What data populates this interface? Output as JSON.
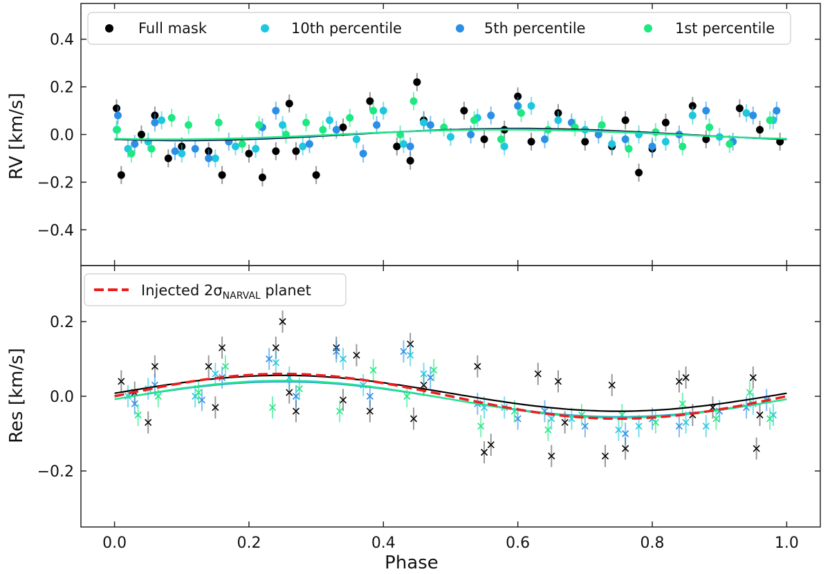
{
  "chart_data": [
    {
      "panel": "top",
      "type": "scatter",
      "xlabel": "Phase",
      "ylabel": "RV [km/s]",
      "xlim": [
        -0.05,
        1.05
      ],
      "ylim": [
        -0.55,
        0.55
      ],
      "xticks": [
        0.0,
        0.2,
        0.4,
        0.6,
        0.8,
        1.0
      ],
      "xtick_labels": [
        "0.0",
        "0.2",
        "0.4",
        "0.6",
        "0.8",
        "1.0"
      ],
      "yticks": [
        -0.4,
        -0.2,
        0.0,
        0.2,
        0.4
      ],
      "ytick_labels": [
        "−0.4",
        "−0.2",
        "0.0",
        "0.2",
        "0.4"
      ],
      "legend_position": "top",
      "series": [
        {
          "name": "Full mask",
          "color": "#000000",
          "marker": "circle",
          "x": [
            0.003,
            0.01,
            0.04,
            0.06,
            0.08,
            0.1,
            0.14,
            0.16,
            0.2,
            0.22,
            0.24,
            0.26,
            0.27,
            0.3,
            0.34,
            0.38,
            0.42,
            0.44,
            0.45,
            0.46,
            0.52,
            0.55,
            0.58,
            0.6,
            0.62,
            0.66,
            0.7,
            0.74,
            0.76,
            0.78,
            0.8,
            0.82,
            0.86,
            0.88,
            0.93,
            0.96,
            0.99
          ],
          "y": [
            0.11,
            -0.17,
            0.0,
            0.08,
            -0.1,
            -0.05,
            -0.07,
            -0.17,
            -0.08,
            -0.18,
            -0.07,
            0.13,
            -0.07,
            -0.17,
            0.03,
            0.14,
            -0.05,
            -0.11,
            0.22,
            0.06,
            0.1,
            -0.02,
            0.02,
            0.16,
            -0.03,
            0.09,
            -0.03,
            -0.05,
            0.06,
            -0.16,
            -0.06,
            0.05,
            0.12,
            -0.02,
            0.11,
            0.02,
            -0.03
          ]
        },
        {
          "name": "10th percentile",
          "color": "#1ec6e0",
          "marker": "circle",
          "x": [
            0.003,
            0.02,
            0.05,
            0.07,
            0.1,
            0.15,
            0.18,
            0.21,
            0.25,
            0.28,
            0.32,
            0.36,
            0.4,
            0.43,
            0.46,
            0.5,
            0.54,
            0.58,
            0.62,
            0.66,
            0.7,
            0.74,
            0.78,
            0.82,
            0.86,
            0.9,
            0.94,
            0.98
          ],
          "y": [
            0.02,
            -0.06,
            -0.03,
            0.06,
            -0.08,
            -0.1,
            -0.05,
            -0.06,
            0.04,
            -0.05,
            0.06,
            -0.02,
            0.1,
            -0.04,
            0.05,
            -0.01,
            0.07,
            -0.05,
            0.12,
            0.06,
            0.02,
            -0.04,
            0.0,
            -0.03,
            0.08,
            -0.01,
            0.09,
            0.06
          ]
        },
        {
          "name": "5th percentile",
          "color": "#2b8fe6",
          "marker": "circle",
          "x": [
            0.005,
            0.03,
            0.06,
            0.09,
            0.12,
            0.14,
            0.17,
            0.22,
            0.24,
            0.29,
            0.33,
            0.37,
            0.39,
            0.44,
            0.47,
            0.53,
            0.56,
            0.6,
            0.64,
            0.68,
            0.72,
            0.76,
            0.8,
            0.84,
            0.88,
            0.92,
            0.95,
            0.985
          ],
          "y": [
            0.08,
            -0.04,
            0.05,
            -0.07,
            -0.06,
            -0.1,
            -0.03,
            0.03,
            0.1,
            -0.04,
            0.02,
            -0.08,
            0.04,
            -0.05,
            0.04,
            0.0,
            0.08,
            0.12,
            -0.02,
            0.05,
            0.0,
            -0.02,
            -0.05,
            0.0,
            0.1,
            -0.03,
            0.08,
            0.1
          ]
        },
        {
          "name": "1st percentile",
          "color": "#1ee882",
          "marker": "circle",
          "x": [
            0.004,
            0.025,
            0.055,
            0.085,
            0.11,
            0.155,
            0.19,
            0.215,
            0.255,
            0.285,
            0.31,
            0.35,
            0.385,
            0.425,
            0.445,
            0.49,
            0.535,
            0.575,
            0.605,
            0.645,
            0.685,
            0.725,
            0.765,
            0.805,
            0.845,
            0.885,
            0.915,
            0.975
          ],
          "y": [
            0.02,
            -0.08,
            -0.06,
            0.07,
            0.04,
            0.05,
            -0.04,
            0.04,
            0.0,
            0.05,
            0.02,
            0.07,
            0.1,
            0.0,
            0.14,
            0.03,
            0.06,
            -0.02,
            0.09,
            0.02,
            0.03,
            0.04,
            -0.06,
            0.01,
            -0.05,
            0.03,
            -0.04,
            0.06
          ]
        }
      ],
      "fits": [
        {
          "name": "Full mask fit",
          "color": "#000000",
          "amplitude": 0.025,
          "offset": 0.0,
          "phase_peak": 0.6
        },
        {
          "name": "10th percentile fit",
          "color": "#1ec6e0",
          "amplitude": 0.021,
          "offset": 0.0,
          "phase_peak": 0.58
        },
        {
          "name": "5th percentile fit",
          "color": "#2b8fe6",
          "amplitude": 0.022,
          "offset": 0.0,
          "phase_peak": 0.59
        },
        {
          "name": "1st percentile fit",
          "color": "#1ee882",
          "amplitude": 0.02,
          "offset": 0.0,
          "phase_peak": 0.58
        }
      ]
    },
    {
      "panel": "bottom",
      "type": "scatter",
      "xlabel": "Phase",
      "ylabel": "Res [km/s]",
      "xlim": [
        -0.05,
        1.05
      ],
      "ylim": [
        -0.35,
        0.35
      ],
      "xticks": [
        0.0,
        0.2,
        0.4,
        0.6,
        0.8,
        1.0
      ],
      "xtick_labels": [
        "0.0",
        "0.2",
        "0.4",
        "0.6",
        "0.8",
        "1.0"
      ],
      "yticks": [
        -0.2,
        0.0,
        0.2
      ],
      "ytick_labels": [
        "−0.2",
        "0.0",
        "0.2"
      ],
      "legend_position": "top-left",
      "legend_label": "Injected 2σ",
      "legend_label_sub": "NARVAL",
      "legend_label_suffix": " planet",
      "injected_planet": {
        "color": "#ee1c1c",
        "amplitude": 0.06,
        "period_phase": 1.0
      },
      "series": [
        {
          "name": "Full mask residuals",
          "color": "#000000",
          "marker": "x",
          "x": [
            0.01,
            0.03,
            0.05,
            0.06,
            0.14,
            0.15,
            0.16,
            0.24,
            0.25,
            0.26,
            0.27,
            0.33,
            0.34,
            0.36,
            0.38,
            0.44,
            0.445,
            0.46,
            0.54,
            0.55,
            0.56,
            0.63,
            0.65,
            0.66,
            0.67,
            0.73,
            0.74,
            0.76,
            0.84,
            0.85,
            0.86,
            0.89,
            0.95,
            0.955,
            0.96
          ],
          "y": [
            0.04,
            0.01,
            -0.07,
            0.08,
            0.08,
            -0.03,
            0.13,
            0.13,
            0.2,
            0.01,
            -0.04,
            0.13,
            -0.01,
            0.11,
            -0.04,
            0.14,
            -0.06,
            0.03,
            0.08,
            -0.15,
            -0.13,
            0.06,
            -0.16,
            0.04,
            -0.07,
            -0.16,
            0.03,
            -0.14,
            0.04,
            0.05,
            -0.05,
            -0.03,
            0.05,
            -0.14,
            -0.05
          ]
        },
        {
          "name": "10th percentile residuals",
          "color": "#1ec6e0",
          "marker": "x",
          "x": [
            0.02,
            0.05,
            0.12,
            0.15,
            0.24,
            0.26,
            0.34,
            0.37,
            0.44,
            0.46,
            0.55,
            0.58,
            0.65,
            0.68,
            0.75,
            0.78,
            0.85,
            0.88,
            0.95,
            0.98
          ],
          "y": [
            0.0,
            0.02,
            0.0,
            0.06,
            0.09,
            0.05,
            0.1,
            0.03,
            0.11,
            0.06,
            -0.03,
            -0.03,
            -0.06,
            -0.06,
            -0.09,
            -0.08,
            -0.07,
            -0.08,
            -0.02,
            -0.05
          ]
        },
        {
          "name": "5th percentile residuals",
          "color": "#2b8fe6",
          "marker": "x",
          "x": [
            0.03,
            0.06,
            0.13,
            0.16,
            0.23,
            0.27,
            0.33,
            0.38,
            0.43,
            0.47,
            0.54,
            0.6,
            0.64,
            0.7,
            0.76,
            0.8,
            0.84,
            0.9,
            0.94,
            0.97
          ],
          "y": [
            -0.02,
            0.03,
            -0.01,
            0.05,
            0.1,
            0.0,
            0.12,
            0.0,
            0.12,
            0.05,
            -0.02,
            -0.06,
            -0.04,
            -0.08,
            -0.1,
            -0.06,
            -0.08,
            -0.04,
            -0.03,
            -0.01
          ]
        },
        {
          "name": "1st percentile residuals",
          "color": "#1ee882",
          "marker": "x",
          "x": [
            0.035,
            0.065,
            0.125,
            0.165,
            0.235,
            0.275,
            0.335,
            0.385,
            0.435,
            0.475,
            0.545,
            0.595,
            0.645,
            0.695,
            0.755,
            0.805,
            0.845,
            0.895,
            0.945,
            0.975
          ],
          "y": [
            -0.05,
            0.0,
            0.01,
            0.08,
            -0.03,
            0.02,
            -0.04,
            0.07,
            0.0,
            0.07,
            -0.08,
            -0.04,
            -0.09,
            -0.05,
            -0.05,
            -0.07,
            -0.02,
            -0.06,
            0.01,
            -0.06
          ]
        }
      ],
      "fits": [
        {
          "name": "Full mask fit",
          "color": "#000000",
          "amplitude": 0.048
        },
        {
          "name": "10th percentile fit",
          "color": "#1ec6e0",
          "amplitude": 0.05
        },
        {
          "name": "5th percentile fit",
          "color": "#2b8fe6",
          "amplitude": 0.047
        },
        {
          "name": "1st percentile fit",
          "color": "#1ee882",
          "amplitude": 0.049
        }
      ]
    }
  ]
}
